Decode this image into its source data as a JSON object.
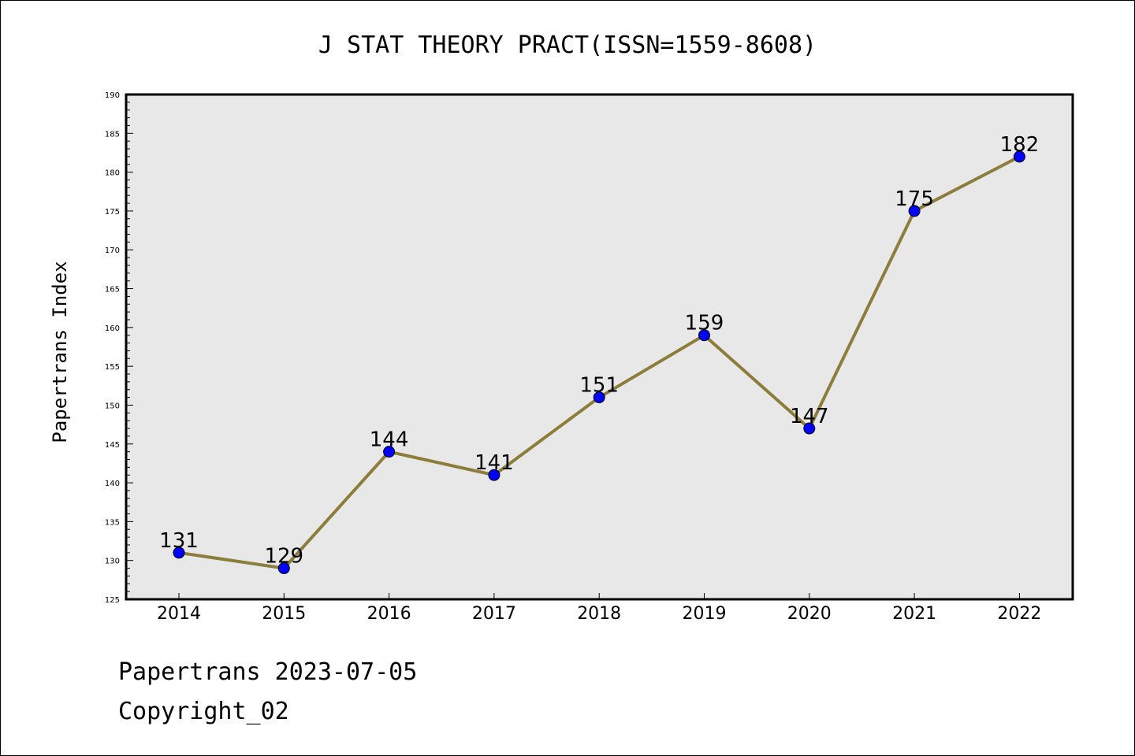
{
  "chart_data": {
    "type": "line",
    "title": "J STAT THEORY PRACT(ISSN=1559-8608)",
    "ylabel": "Papertrans Index",
    "xlabel": "",
    "categories": [
      "2014",
      "2015",
      "2016",
      "2017",
      "2018",
      "2019",
      "2020",
      "2021",
      "2022"
    ],
    "values": [
      131,
      129,
      144,
      141,
      151,
      159,
      147,
      175,
      182
    ],
    "data_labels": [
      "131",
      "129",
      "144",
      "141",
      "151",
      "159",
      "147",
      "175",
      "182"
    ],
    "ylim": [
      125,
      190
    ],
    "yticks": [
      "125",
      "130",
      "135",
      "140",
      "145",
      "150",
      "155",
      "160",
      "165",
      "170",
      "175",
      "180",
      "185",
      "190"
    ],
    "grid": false,
    "legend": "none",
    "colors": {
      "line": "#8c7d3a",
      "marker": "#0000ff",
      "plot_background": "#e8e8e8"
    }
  },
  "footer": {
    "line1": "Papertrans 2023-07-05",
    "line2": "Copyright_02"
  }
}
